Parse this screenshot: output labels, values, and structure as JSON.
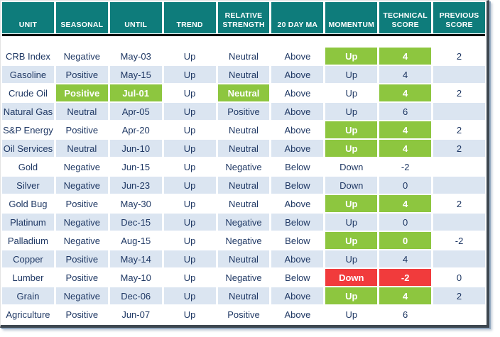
{
  "chart_data": {
    "type": "table",
    "columns": [
      "UNIT",
      "SEASONAL",
      "UNTIL",
      "TREND",
      "RELATIVE STRENGTH",
      "20 DAY MA",
      "MOMENTUM",
      "TECHNICAL SCORE",
      "PREVIOUS SCORE"
    ],
    "rows": [
      {
        "cells": [
          "CRB Index",
          "Negative",
          "May-03",
          "Up",
          "Neutral",
          "Above",
          "Up",
          "4",
          "2"
        ],
        "hl": {
          "6": "green",
          "7": "green"
        }
      },
      {
        "cells": [
          "Gasoline",
          "Positive",
          "May-15",
          "Up",
          "Neutral",
          "Above",
          "Up",
          "4",
          ""
        ],
        "hl": {}
      },
      {
        "cells": [
          "Crude Oil",
          "Positive",
          "Jul-01",
          "Up",
          "Neutral",
          "Above",
          "Up",
          "4",
          "2"
        ],
        "hl": {
          "1": "green",
          "2": "green",
          "4": "green",
          "7": "green"
        }
      },
      {
        "cells": [
          "Natural Gas",
          "Neutral",
          "Apr-05",
          "Up",
          "Positive",
          "Above",
          "Up",
          "6",
          ""
        ],
        "hl": {}
      },
      {
        "cells": [
          "S&P Energy",
          "Positive",
          "Apr-20",
          "Up",
          "Neutral",
          "Above",
          "Up",
          "4",
          "2"
        ],
        "hl": {
          "6": "green",
          "7": "green"
        }
      },
      {
        "cells": [
          "Oil Services",
          "Neutral",
          "Jun-10",
          "Up",
          "Neutral",
          "Above",
          "Up",
          "4",
          "2"
        ],
        "hl": {
          "6": "green",
          "7": "green"
        }
      },
      {
        "cells": [
          "Gold",
          "Negative",
          "Jun-15",
          "Up",
          "Negative",
          "Below",
          "Down",
          "-2",
          ""
        ],
        "hl": {}
      },
      {
        "cells": [
          "Silver",
          "Negative",
          "Jun-23",
          "Up",
          "Neutral",
          "Below",
          "Down",
          "0",
          ""
        ],
        "hl": {}
      },
      {
        "cells": [
          "Gold Bug",
          "Positive",
          "May-30",
          "Up",
          "Neutral",
          "Above",
          "Up",
          "4",
          "2"
        ],
        "hl": {
          "6": "green",
          "7": "green"
        }
      },
      {
        "cells": [
          "Platinum",
          "Negative",
          "Dec-15",
          "Up",
          "Negative",
          "Below",
          "Up",
          "0",
          ""
        ],
        "hl": {}
      },
      {
        "cells": [
          "Palladium",
          "Negative",
          "Aug-15",
          "Up",
          "Negative",
          "Below",
          "Up",
          "0",
          "-2"
        ],
        "hl": {
          "6": "green",
          "7": "green"
        }
      },
      {
        "cells": [
          "Copper",
          "Positive",
          "May-14",
          "Up",
          "Neutral",
          "Above",
          "Up",
          "4",
          ""
        ],
        "hl": {}
      },
      {
        "cells": [
          "Lumber",
          "Positive",
          "May-10",
          "Up",
          "Negative",
          "Below",
          "Down",
          "-2",
          "0"
        ],
        "hl": {
          "6": "red",
          "7": "red"
        }
      },
      {
        "cells": [
          "Grain",
          "Negative",
          "Dec-06",
          "Up",
          "Neutral",
          "Above",
          "Up",
          "4",
          "2"
        ],
        "hl": {
          "6": "green",
          "7": "green"
        }
      },
      {
        "cells": [
          "Agriculture",
          "Positive",
          "Jun-07",
          "Up",
          "Positive",
          "Above",
          "Up",
          "6",
          ""
        ],
        "hl": {}
      }
    ]
  },
  "colors": {
    "header_bg": "#0e7c7b",
    "header_text": "#ffffff",
    "row_bg": "#ffffff",
    "row_alt_bg": "#dbe5f1",
    "text": "#1f3864",
    "highlight_green": "#8dc63f",
    "highlight_red": "#f13b3c",
    "divider": "#0d0d0d",
    "frame": "#3d4750"
  }
}
